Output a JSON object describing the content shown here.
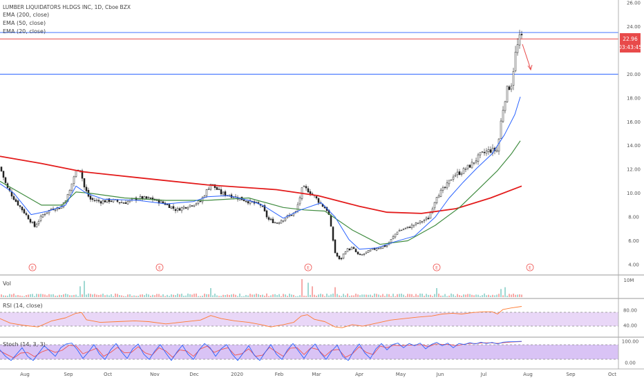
{
  "header": {
    "title": "LUMBER LIQUIDATORS HLDGS INC, 1D, Cboe BZX",
    "ema200_label": "EMA (200, close)",
    "ema50_label": "EMA (50, close)",
    "ema20_label": "EMA (20, close)"
  },
  "price_tags": {
    "last": "22.96",
    "countdown": "03:43:45"
  },
  "panes": {
    "volume_label": "Vol",
    "rsi_label": "RSI (14, close)",
    "stoch_label": "Stoch (14, 3, 3)"
  },
  "colors": {
    "up": "#26a69a",
    "down": "#ef5350",
    "candle": "#222222",
    "ema200": "#e31b1b",
    "ema50": "#3f8b3f",
    "ema20": "#2962ff",
    "hline_blue": "#2962ff",
    "hline_red": "#e84a4a",
    "rsi": "#ff7a2f",
    "rsi_band": "#e9d7f7",
    "stoch_k": "#2962ff",
    "stoch_d": "#ef5350",
    "stoch_band": "#d9c3f5",
    "earnings": "#ef5350"
  },
  "chart_data": {
    "type": "candlestick",
    "price_axis": {
      "ylim": [
        3.5,
        26
      ],
      "ticks": [
        "26.00",
        "24.00",
        "22.00",
        "20.00",
        "18.00",
        "16.00",
        "14.00",
        "12.00",
        "10.00",
        "8.00",
        "6.00",
        "4.00"
      ]
    },
    "x_axis": {
      "ticks": [
        "Aug",
        "Sep",
        "Oct",
        "Nov",
        "Dec",
        "2020",
        "Feb",
        "Mar",
        "Apr",
        "May",
        "Jun",
        "Jul",
        "Aug",
        "Sep",
        "Oct"
      ]
    },
    "horizontal_lines": [
      {
        "value": 23.5,
        "color": "blue"
      },
      {
        "value": 22.96,
        "color": "red"
      },
      {
        "value": 20.0,
        "color": "blue"
      }
    ],
    "price_path": [
      [
        0,
        12.2
      ],
      [
        10,
        10.5
      ],
      [
        22,
        9.4
      ],
      [
        35,
        8.4
      ],
      [
        50,
        7.2
      ],
      [
        62,
        8.2
      ],
      [
        75,
        8.7
      ],
      [
        88,
        8.8
      ],
      [
        100,
        10.0
      ],
      [
        108,
        11.6
      ],
      [
        115,
        12.3
      ],
      [
        122,
        10.5
      ],
      [
        130,
        9.5
      ],
      [
        145,
        9.3
      ],
      [
        160,
        9.4
      ],
      [
        180,
        9.2
      ],
      [
        200,
        9.6
      ],
      [
        220,
        9.5
      ],
      [
        240,
        9.1
      ],
      [
        255,
        8.6
      ],
      [
        270,
        8.9
      ],
      [
        290,
        9.3
      ],
      [
        305,
        10.8
      ],
      [
        320,
        10.0
      ],
      [
        335,
        9.8
      ],
      [
        350,
        9.5
      ],
      [
        365,
        9.2
      ],
      [
        378,
        9.0
      ],
      [
        388,
        7.8
      ],
      [
        400,
        7.5
      ],
      [
        415,
        8.0
      ],
      [
        428,
        8.4
      ],
      [
        438,
        10.5
      ],
      [
        447,
        10.2
      ],
      [
        457,
        9.6
      ],
      [
        466,
        9.0
      ],
      [
        475,
        8.5
      ],
      [
        485,
        5.0
      ],
      [
        492,
        4.3
      ],
      [
        500,
        5.2
      ],
      [
        510,
        5.4
      ],
      [
        520,
        4.7
      ],
      [
        530,
        5.0
      ],
      [
        545,
        5.4
      ],
      [
        560,
        5.6
      ],
      [
        575,
        6.8
      ],
      [
        590,
        7.1
      ],
      [
        605,
        7.5
      ],
      [
        620,
        7.9
      ],
      [
        632,
        9.8
      ],
      [
        645,
        10.5
      ],
      [
        656,
        11.5
      ],
      [
        668,
        11.8
      ],
      [
        682,
        12.4
      ],
      [
        695,
        13.2
      ],
      [
        708,
        13.6
      ],
      [
        720,
        13.6
      ],
      [
        726,
        16.5
      ],
      [
        733,
        18.6
      ],
      [
        740,
        19.2
      ],
      [
        746,
        21.7
      ],
      [
        751,
        22.8
      ],
      [
        754,
        23.3
      ],
      [
        756,
        22.96
      ]
    ],
    "ema200_path": [
      [
        0,
        13.1
      ],
      [
        60,
        12.5
      ],
      [
        120,
        11.8
      ],
      [
        200,
        11.3
      ],
      [
        300,
        10.7
      ],
      [
        400,
        10.3
      ],
      [
        460,
        9.8
      ],
      [
        520,
        8.9
      ],
      [
        560,
        8.4
      ],
      [
        610,
        8.3
      ],
      [
        660,
        8.7
      ],
      [
        710,
        9.6
      ],
      [
        755,
        10.6
      ]
    ],
    "ema50_path": [
      [
        0,
        11.0
      ],
      [
        30,
        10.0
      ],
      [
        60,
        9.0
      ],
      [
        90,
        9.0
      ],
      [
        110,
        10.1
      ],
      [
        130,
        10.0
      ],
      [
        180,
        9.6
      ],
      [
        240,
        9.4
      ],
      [
        300,
        9.4
      ],
      [
        360,
        9.6
      ],
      [
        410,
        8.8
      ],
      [
        440,
        8.6
      ],
      [
        470,
        8.5
      ],
      [
        510,
        6.9
      ],
      [
        550,
        5.7
      ],
      [
        590,
        6.0
      ],
      [
        630,
        7.3
      ],
      [
        665,
        8.8
      ],
      [
        690,
        10.2
      ],
      [
        720,
        11.9
      ],
      [
        740,
        13.3
      ],
      [
        753,
        14.4
      ]
    ],
    "ema20_path": [
      [
        0,
        10.8
      ],
      [
        20,
        10.0
      ],
      [
        45,
        8.2
      ],
      [
        70,
        8.5
      ],
      [
        95,
        9.0
      ],
      [
        110,
        10.6
      ],
      [
        125,
        10.0
      ],
      [
        150,
        9.5
      ],
      [
        200,
        9.4
      ],
      [
        240,
        9.1
      ],
      [
        280,
        9.3
      ],
      [
        300,
        9.7
      ],
      [
        330,
        9.8
      ],
      [
        360,
        9.4
      ],
      [
        380,
        9.0
      ],
      [
        410,
        7.9
      ],
      [
        435,
        8.6
      ],
      [
        465,
        9.2
      ],
      [
        485,
        8.0
      ],
      [
        505,
        6.1
      ],
      [
        520,
        5.3
      ],
      [
        545,
        5.4
      ],
      [
        570,
        5.9
      ],
      [
        600,
        6.4
      ],
      [
        630,
        8.0
      ],
      [
        650,
        9.6
      ],
      [
        670,
        10.9
      ],
      [
        690,
        12.1
      ],
      [
        712,
        13.3
      ],
      [
        730,
        14.9
      ],
      [
        745,
        16.6
      ],
      [
        753,
        18.1
      ]
    ],
    "earnings_markers_x": [
      47,
      231,
      446,
      632,
      767
    ],
    "earnings_label": "E",
    "volume_axis": {
      "ticks": [
        "10M"
      ]
    },
    "volume_spikes": [
      [
        115,
        0.6
      ],
      [
        121,
        0.9
      ],
      [
        305,
        0.5
      ],
      [
        438,
        1.0
      ],
      [
        446,
        0.8
      ],
      [
        452,
        0.6
      ],
      [
        486,
        0.55
      ],
      [
        632,
        0.5
      ],
      [
        724,
        0.45
      ],
      [
        732,
        0.55
      ]
    ],
    "rsi_axis": {
      "ticks": [
        "80.00",
        "40.00"
      ],
      "ylim": [
        20,
        100
      ]
    },
    "rsi_path": [
      [
        0,
        58
      ],
      [
        15,
        46
      ],
      [
        35,
        40
      ],
      [
        55,
        36
      ],
      [
        75,
        52
      ],
      [
        95,
        60
      ],
      [
        110,
        72
      ],
      [
        118,
        74
      ],
      [
        125,
        55
      ],
      [
        145,
        48
      ],
      [
        170,
        50
      ],
      [
        195,
        52
      ],
      [
        215,
        50
      ],
      [
        240,
        44
      ],
      [
        260,
        48
      ],
      [
        290,
        54
      ],
      [
        305,
        66
      ],
      [
        320,
        58
      ],
      [
        340,
        52
      ],
      [
        360,
        48
      ],
      [
        378,
        42
      ],
      [
        392,
        36
      ],
      [
        410,
        42
      ],
      [
        425,
        48
      ],
      [
        436,
        65
      ],
      [
        445,
        68
      ],
      [
        455,
        56
      ],
      [
        470,
        50
      ],
      [
        485,
        36
      ],
      [
        495,
        34
      ],
      [
        510,
        42
      ],
      [
        525,
        38
      ],
      [
        545,
        46
      ],
      [
        565,
        54
      ],
      [
        585,
        58
      ],
      [
        605,
        62
      ],
      [
        625,
        65
      ],
      [
        640,
        70
      ],
      [
        655,
        72
      ],
      [
        668,
        70
      ],
      [
        685,
        74
      ],
      [
        700,
        76
      ],
      [
        712,
        76
      ],
      [
        720,
        70
      ],
      [
        728,
        82
      ],
      [
        740,
        86
      ],
      [
        755,
        90
      ]
    ],
    "stoch_axis": {
      "ticks": [
        "100.00",
        "0.00"
      ],
      "ylim": [
        -10,
        110
      ]
    },
    "stoch_k_path": [
      [
        0,
        60
      ],
      [
        8,
        30
      ],
      [
        16,
        10
      ],
      [
        24,
        40
      ],
      [
        32,
        70
      ],
      [
        40,
        30
      ],
      [
        48,
        10
      ],
      [
        56,
        45
      ],
      [
        64,
        80
      ],
      [
        72,
        55
      ],
      [
        80,
        30
      ],
      [
        88,
        70
      ],
      [
        96,
        88
      ],
      [
        104,
        92
      ],
      [
        112,
        60
      ],
      [
        120,
        20
      ],
      [
        128,
        50
      ],
      [
        136,
        85
      ],
      [
        144,
        40
      ],
      [
        152,
        15
      ],
      [
        160,
        60
      ],
      [
        168,
        90
      ],
      [
        176,
        50
      ],
      [
        184,
        20
      ],
      [
        192,
        65
      ],
      [
        200,
        88
      ],
      [
        208,
        40
      ],
      [
        216,
        15
      ],
      [
        224,
        55
      ],
      [
        232,
        85
      ],
      [
        240,
        45
      ],
      [
        248,
        10
      ],
      [
        256,
        50
      ],
      [
        264,
        82
      ],
      [
        272,
        40
      ],
      [
        280,
        15
      ],
      [
        288,
        60
      ],
      [
        296,
        90
      ],
      [
        304,
        70
      ],
      [
        312,
        30
      ],
      [
        320,
        65
      ],
      [
        328,
        85
      ],
      [
        336,
        40
      ],
      [
        344,
        10
      ],
      [
        352,
        45
      ],
      [
        360,
        80
      ],
      [
        368,
        35
      ],
      [
        376,
        10
      ],
      [
        384,
        50
      ],
      [
        392,
        85
      ],
      [
        400,
        40
      ],
      [
        408,
        15
      ],
      [
        416,
        60
      ],
      [
        424,
        90
      ],
      [
        432,
        55
      ],
      [
        440,
        20
      ],
      [
        448,
        60
      ],
      [
        456,
        88
      ],
      [
        464,
        45
      ],
      [
        472,
        15
      ],
      [
        480,
        55
      ],
      [
        488,
        82
      ],
      [
        496,
        30
      ],
      [
        504,
        10
      ],
      [
        512,
        55
      ],
      [
        520,
        88
      ],
      [
        528,
        45
      ],
      [
        536,
        20
      ],
      [
        544,
        65
      ],
      [
        552,
        90
      ],
      [
        560,
        60
      ],
      [
        568,
        85
      ],
      [
        576,
        92
      ],
      [
        584,
        70
      ],
      [
        592,
        90
      ],
      [
        600,
        80
      ],
      [
        608,
        92
      ],
      [
        616,
        65
      ],
      [
        624,
        85
      ],
      [
        632,
        95
      ],
      [
        640,
        80
      ],
      [
        648,
        92
      ],
      [
        656,
        70
      ],
      [
        664,
        90
      ],
      [
        672,
        85
      ],
      [
        680,
        94
      ],
      [
        688,
        88
      ],
      [
        696,
        96
      ],
      [
        704,
        90
      ],
      [
        712,
        95
      ],
      [
        720,
        88
      ],
      [
        728,
        96
      ],
      [
        736,
        98
      ],
      [
        745,
        99
      ],
      [
        755,
        100
      ]
    ],
    "stoch_d_path": [
      [
        0,
        55
      ],
      [
        10,
        38
      ],
      [
        20,
        22
      ],
      [
        30,
        45
      ],
      [
        40,
        48
      ],
      [
        50,
        28
      ],
      [
        60,
        50
      ],
      [
        70,
        62
      ],
      [
        80,
        48
      ],
      [
        90,
        58
      ],
      [
        100,
        82
      ],
      [
        110,
        78
      ],
      [
        120,
        42
      ],
      [
        130,
        55
      ],
      [
        140,
        68
      ],
      [
        150,
        30
      ],
      [
        160,
        48
      ],
      [
        170,
        72
      ],
      [
        180,
        46
      ],
      [
        190,
        48
      ],
      [
        200,
        75
      ],
      [
        210,
        46
      ],
      [
        220,
        35
      ],
      [
        230,
        70
      ],
      [
        240,
        55
      ],
      [
        250,
        25
      ],
      [
        260,
        60
      ],
      [
        270,
        55
      ],
      [
        280,
        30
      ],
      [
        290,
        65
      ],
      [
        300,
        78
      ],
      [
        310,
        48
      ],
      [
        320,
        62
      ],
      [
        330,
        70
      ],
      [
        340,
        35
      ],
      [
        350,
        42
      ],
      [
        360,
        65
      ],
      [
        370,
        30
      ],
      [
        380,
        35
      ],
      [
        390,
        72
      ],
      [
        400,
        50
      ],
      [
        410,
        30
      ],
      [
        420,
        68
      ],
      [
        430,
        70
      ],
      [
        440,
        38
      ],
      [
        450,
        70
      ],
      [
        460,
        62
      ],
      [
        470,
        30
      ],
      [
        480,
        58
      ],
      [
        490,
        62
      ],
      [
        500,
        25
      ],
      [
        510,
        42
      ],
      [
        520,
        75
      ],
      [
        530,
        48
      ],
      [
        540,
        38
      ],
      [
        550,
        78
      ],
      [
        560,
        70
      ],
      [
        570,
        82
      ],
      [
        580,
        80
      ],
      [
        590,
        82
      ],
      [
        600,
        82
      ],
      [
        610,
        85
      ],
      [
        620,
        75
      ],
      [
        630,
        88
      ],
      [
        640,
        86
      ],
      [
        650,
        86
      ],
      [
        660,
        80
      ],
      [
        670,
        86
      ],
      [
        680,
        90
      ],
      [
        690,
        90
      ],
      [
        700,
        93
      ],
      [
        710,
        93
      ],
      [
        720,
        91
      ],
      [
        730,
        94
      ],
      [
        740,
        97
      ],
      [
        755,
        99
      ]
    ]
  }
}
